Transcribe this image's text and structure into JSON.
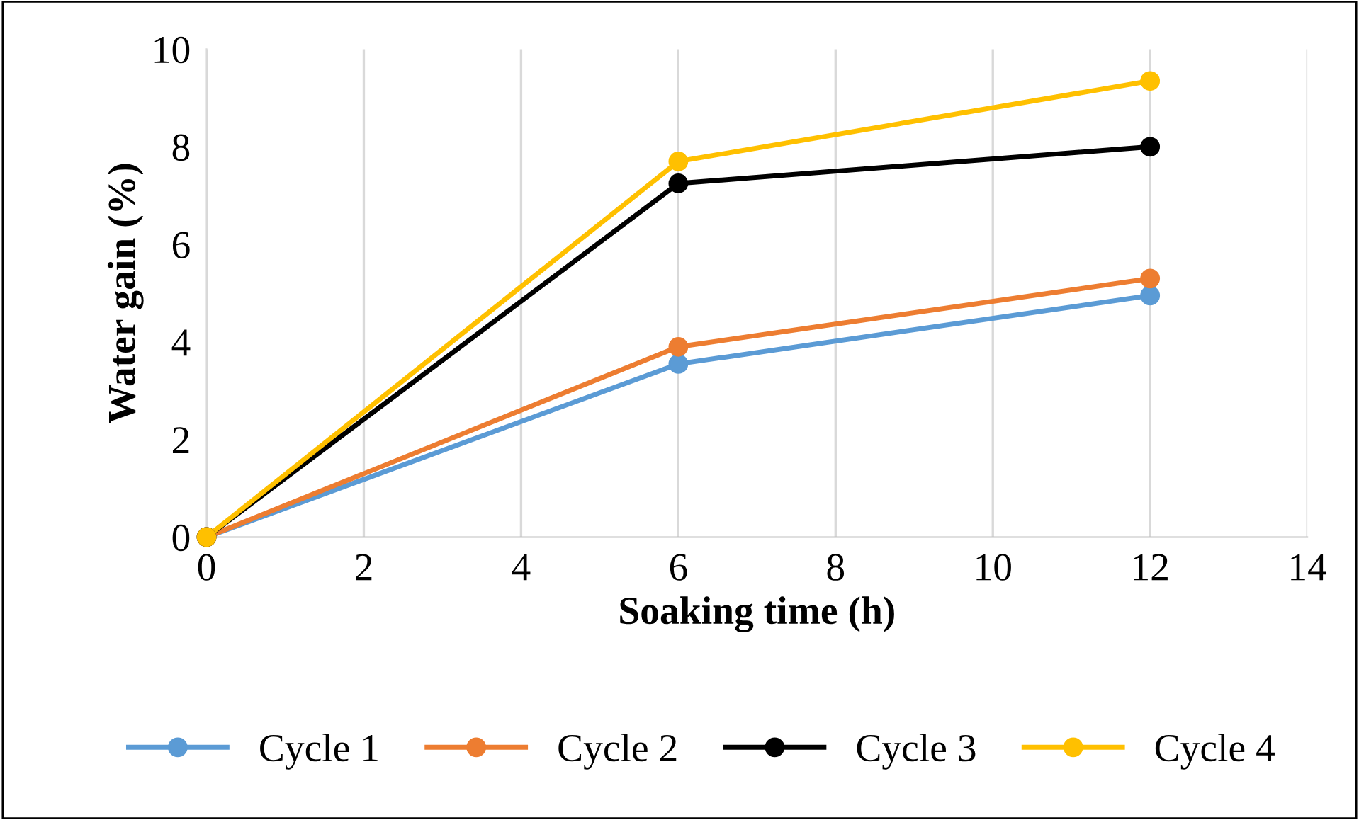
{
  "chart_data": {
    "type": "line",
    "xlabel": "Soaking time (h)",
    "ylabel": "Water gain (%)",
    "x": [
      0,
      6,
      12
    ],
    "series": [
      {
        "name": "Cycle 1",
        "color": "#5b9bd5",
        "values": [
          0,
          3.55,
          4.95
        ]
      },
      {
        "name": "Cycle 2",
        "color": "#ed7d31",
        "values": [
          0,
          3.9,
          5.3
        ]
      },
      {
        "name": "Cycle 3",
        "color": "#000000",
        "values": [
          0,
          7.25,
          8.0
        ]
      },
      {
        "name": "Cycle 4",
        "color": "#ffc000",
        "values": [
          0,
          7.7,
          9.35
        ]
      }
    ],
    "xlim": [
      0,
      14
    ],
    "xticks": [
      0,
      2,
      4,
      6,
      8,
      10,
      12,
      14
    ],
    "ylim": [
      0,
      10
    ],
    "yticks": [
      0,
      2,
      4,
      6,
      8,
      10
    ],
    "grid": "x",
    "legend": "bottom",
    "marker": "circle",
    "line_style": "solid"
  }
}
